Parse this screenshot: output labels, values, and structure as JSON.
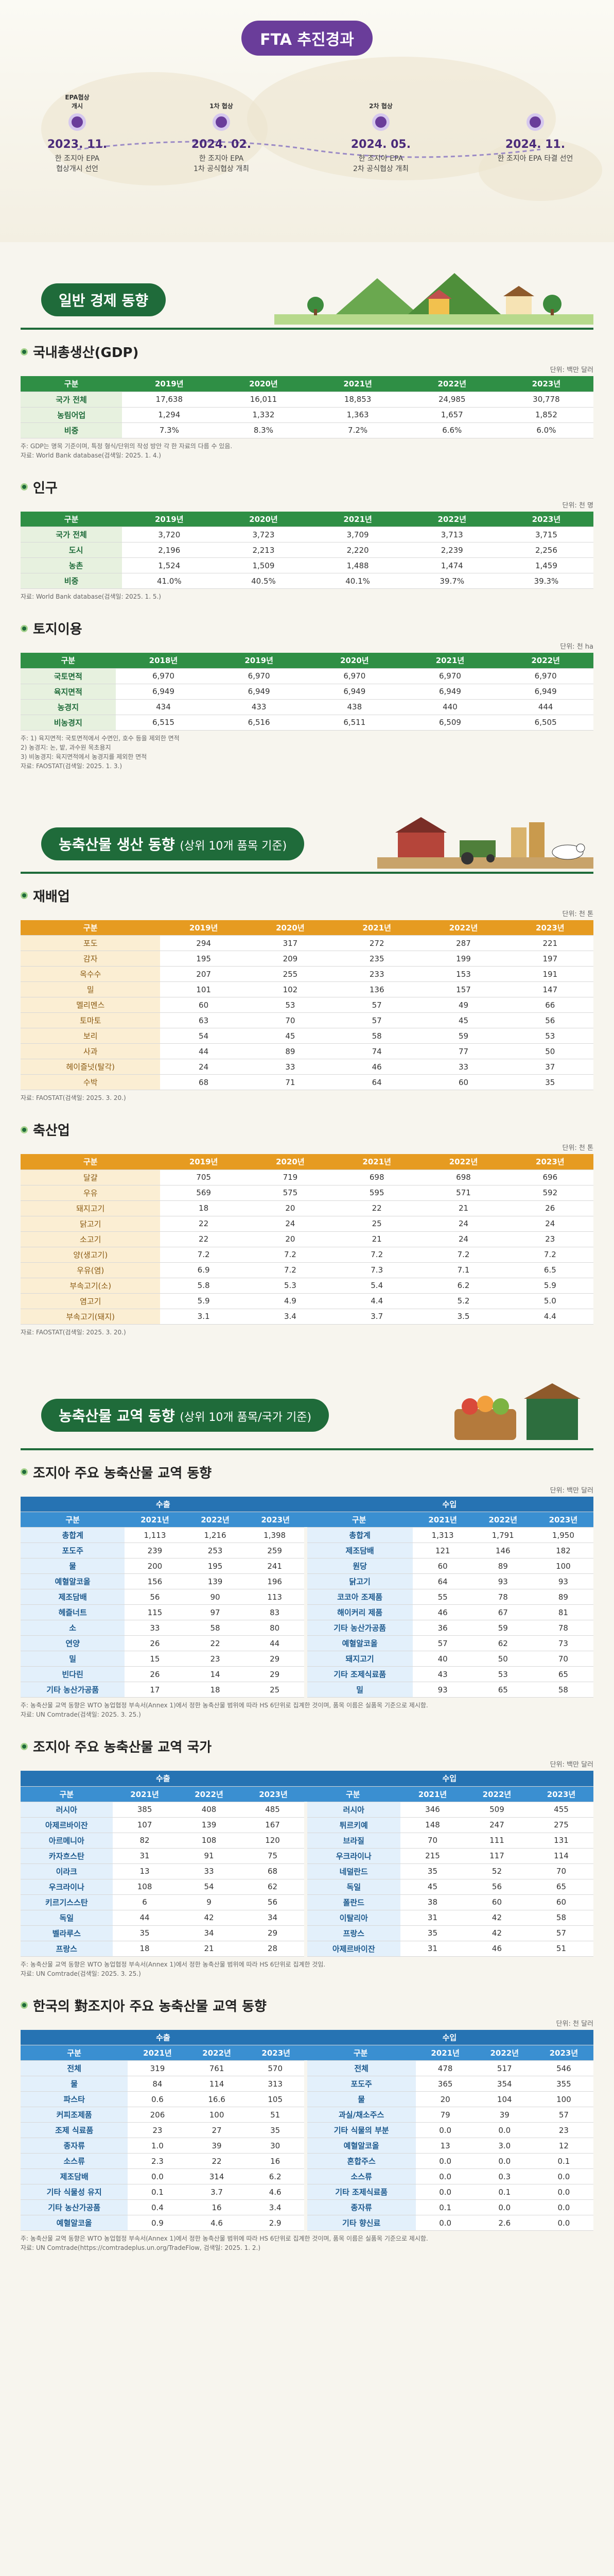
{
  "fta": {
    "title": "FTA 추진경과",
    "steps": [
      {
        "date": "2023. 11.",
        "desc": "한 조지아 EPA\n협상개시 선언",
        "flag": "EPA협상\n개시"
      },
      {
        "date": "2024. 02.",
        "desc": "한 조지아 EPA\n1차 공식협상 개최",
        "flag": "1차 협상"
      },
      {
        "date": "2024. 05.",
        "desc": "한 조지아 EPA\n2차 공식협상 개최",
        "flag": "2차 협상"
      },
      {
        "date": "2024. 11.",
        "desc": "한 조지아 EPA 타결 선언",
        "flag": ""
      }
    ]
  },
  "econ": {
    "title": "일반 경제 동향",
    "gdp": {
      "title": "국내총생산(GDP)",
      "unit": "단위: 백만 달러",
      "header": [
        "구분",
        "2019년",
        "2020년",
        "2021년",
        "2022년",
        "2023년"
      ],
      "rows": [
        [
          "국가 전체",
          "17,638",
          "16,011",
          "18,853",
          "24,985",
          "30,778"
        ],
        [
          "농림어업",
          "1,294",
          "1,332",
          "1,363",
          "1,657",
          "1,852"
        ],
        [
          "비중",
          "7.3%",
          "8.3%",
          "7.2%",
          "6.6%",
          "6.0%"
        ]
      ],
      "notes": "주: GDP는 명목 기준이며, 특정 형식/단위의 작성 방안 각 한 자료의 다름 수 있음.\n자료: World Bank database(검색일: 2025. 1. 4.)"
    },
    "pop": {
      "title": "인구",
      "unit": "단위: 천 명",
      "header": [
        "구분",
        "2019년",
        "2020년",
        "2021년",
        "2022년",
        "2023년"
      ],
      "rows": [
        [
          "국가 전체",
          "3,720",
          "3,723",
          "3,709",
          "3,713",
          "3,715"
        ],
        [
          "도시",
          "2,196",
          "2,213",
          "2,220",
          "2,239",
          "2,256"
        ],
        [
          "농촌",
          "1,524",
          "1,509",
          "1,488",
          "1,474",
          "1,459"
        ],
        [
          "비중",
          "41.0%",
          "40.5%",
          "40.1%",
          "39.7%",
          "39.3%"
        ]
      ],
      "notes": "자료: World Bank database(검색일: 2025. 1. 5.)"
    },
    "land": {
      "title": "토지이용",
      "unit": "단위: 천 ha",
      "header": [
        "구분",
        "2018년",
        "2019년",
        "2020년",
        "2021년",
        "2022년"
      ],
      "rows": [
        [
          "국토면적",
          "6,970",
          "6,970",
          "6,970",
          "6,970",
          "6,970"
        ],
        [
          "육지면적",
          "6,949",
          "6,949",
          "6,949",
          "6,949",
          "6,949"
        ],
        [
          "농경지",
          "434",
          "433",
          "438",
          "440",
          "444"
        ],
        [
          "비농경지",
          "6,515",
          "6,516",
          "6,511",
          "6,509",
          "6,505"
        ]
      ],
      "notes": "주: 1) 육지면적: 국토면적에서 수면인, 호수 등을 제외한 면적\n    2) 농경지: 논, 밭, 과수원 목초용지\n    3) 비농경지: 육지면적에서 농경지를 제외한 면적\n자료: FAOSTAT(검색일: 2025. 1. 3.)"
    }
  },
  "agri": {
    "title": "농축산물 생산 동향",
    "subtitle": "(상위 10개 품목 기준)",
    "crops": {
      "title": "재배업",
      "unit": "단위: 천 톤",
      "header": [
        "구분",
        "2019년",
        "2020년",
        "2021년",
        "2022년",
        "2023년"
      ],
      "rows": [
        [
          "포도",
          "294",
          "317",
          "272",
          "287",
          "221"
        ],
        [
          "감자",
          "195",
          "209",
          "235",
          "199",
          "197"
        ],
        [
          "옥수수",
          "207",
          "255",
          "233",
          "153",
          "191"
        ],
        [
          "밀",
          "101",
          "102",
          "136",
          "157",
          "147"
        ],
        [
          "멜리멘스",
          "60",
          "53",
          "57",
          "49",
          "66"
        ],
        [
          "토마토",
          "63",
          "70",
          "57",
          "45",
          "56"
        ],
        [
          "보리",
          "54",
          "45",
          "58",
          "59",
          "53"
        ],
        [
          "사과",
          "44",
          "89",
          "74",
          "77",
          "50"
        ],
        [
          "헤이즐넛(탈각)",
          "24",
          "33",
          "46",
          "33",
          "37"
        ],
        [
          "수박",
          "68",
          "71",
          "64",
          "60",
          "35"
        ]
      ],
      "notes": "자료: FAOSTAT(검색일: 2025. 3. 20.)"
    },
    "livestock": {
      "title": "축산업",
      "unit": "단위: 천 톤",
      "header": [
        "구분",
        "2019년",
        "2020년",
        "2021년",
        "2022년",
        "2023년"
      ],
      "rows": [
        [
          "달걀",
          "705",
          "719",
          "698",
          "698",
          "696"
        ],
        [
          "우유",
          "569",
          "575",
          "595",
          "571",
          "592"
        ],
        [
          "돼지고기",
          "18",
          "20",
          "22",
          "21",
          "26"
        ],
        [
          "닭고기",
          "22",
          "24",
          "25",
          "24",
          "24"
        ],
        [
          "소고기",
          "22",
          "20",
          "21",
          "24",
          "23"
        ],
        [
          "양(생고기)",
          "7.2",
          "7.2",
          "7.2",
          "7.2",
          "7.2"
        ],
        [
          "우유(염)",
          "6.9",
          "7.2",
          "7.3",
          "7.1",
          "6.5"
        ],
        [
          "부속고기(소)",
          "5.8",
          "5.3",
          "5.4",
          "6.2",
          "5.9"
        ],
        [
          "염고기",
          "5.9",
          "4.9",
          "4.4",
          "5.2",
          "5.0"
        ],
        [
          "부속고기(돼지)",
          "3.1",
          "3.4",
          "3.7",
          "3.5",
          "4.4"
        ]
      ],
      "notes": "자료: FAOSTAT(검색일: 2025. 3. 20.)"
    }
  },
  "trade": {
    "title": "농축산물 교역 동향",
    "subtitle": "(상위 10개 품목/국가 기준)",
    "items": {
      "title": "조지아 주요 농축산물 교역 동향",
      "unit": "단위: 백만 달러",
      "export_label": "수출",
      "import_label": "수입",
      "header": [
        "구분",
        "2021년",
        "2022년",
        "2023년",
        "구분",
        "2021년",
        "2022년",
        "2023년"
      ],
      "rows": [
        [
          "총합계",
          "1,113",
          "1,216",
          "1,398",
          "총합계",
          "1,313",
          "1,791",
          "1,950"
        ],
        [
          "포도주",
          "239",
          "253",
          "259",
          "제조담배",
          "121",
          "146",
          "182"
        ],
        [
          "물",
          "200",
          "195",
          "241",
          "원당",
          "60",
          "89",
          "100"
        ],
        [
          "예혈알코올",
          "156",
          "139",
          "196",
          "닭고기",
          "64",
          "93",
          "93"
        ],
        [
          "제조담배",
          "56",
          "90",
          "113",
          "코코아 조제품",
          "55",
          "78",
          "89"
        ],
        [
          "헤즐너트",
          "115",
          "97",
          "83",
          "해이커리 제품",
          "46",
          "67",
          "81"
        ],
        [
          "소",
          "33",
          "58",
          "80",
          "기타 농산가공품",
          "36",
          "59",
          "78"
        ],
        [
          "연양",
          "26",
          "22",
          "44",
          "예혈알코올",
          "57",
          "62",
          "73"
        ],
        [
          "밀",
          "15",
          "23",
          "29",
          "돼지고기",
          "40",
          "50",
          "70"
        ],
        [
          "빈다린",
          "26",
          "14",
          "29",
          "기타 조제식료품",
          "43",
          "53",
          "65"
        ],
        [
          "기타 농산가공품",
          "17",
          "18",
          "25",
          "밀",
          "93",
          "65",
          "58"
        ]
      ],
      "notes": "주: 농축산물 교역 동향은 WTO 농업협정 부속서(Annex 1)에서 정한 농축산물 범위에 따라 HS 6단위로 집계한 것이며, 품목 이름은 실품목 기준으로 제시함.\n자료: UN Comtrade(검색일: 2025. 3. 25.)"
    },
    "countries": {
      "title": "조지아 주요 농축산물 교역 국가",
      "unit": "단위: 백만 달러",
      "export_label": "수출",
      "import_label": "수입",
      "header": [
        "구분",
        "2021년",
        "2022년",
        "2023년",
        "구분",
        "2021년",
        "2022년",
        "2023년"
      ],
      "rows": [
        [
          "러시아",
          "385",
          "408",
          "485",
          "러시아",
          "346",
          "509",
          "455"
        ],
        [
          "아제르바이잔",
          "107",
          "139",
          "167",
          "튀르키예",
          "148",
          "247",
          "275"
        ],
        [
          "아르메니아",
          "82",
          "108",
          "120",
          "브라질",
          "70",
          "111",
          "131"
        ],
        [
          "카자흐스탄",
          "31",
          "91",
          "75",
          "우크라이나",
          "215",
          "117",
          "114"
        ],
        [
          "이라크",
          "13",
          "33",
          "68",
          "네덜란드",
          "35",
          "52",
          "70"
        ],
        [
          "우크라이나",
          "108",
          "54",
          "62",
          "독일",
          "45",
          "56",
          "65"
        ],
        [
          "키르기스스탄",
          "6",
          "9",
          "56",
          "폴란드",
          "38",
          "60",
          "60"
        ],
        [
          "독일",
          "44",
          "42",
          "34",
          "이탈리아",
          "31",
          "42",
          "58"
        ],
        [
          "벨라루스",
          "35",
          "34",
          "29",
          "프랑스",
          "35",
          "42",
          "57"
        ],
        [
          "프랑스",
          "18",
          "21",
          "28",
          "아제르바이잔",
          "31",
          "46",
          "51"
        ]
      ],
      "notes": "주: 농축산물 교역 동향은 WTO 농업협정 부속서(Annex 1)에서 정한 농축산물 범위에 따라 HS 6단위로 집계한 것임.\n자료: UN Comtrade(검색일: 2025. 3. 25.)"
    },
    "korea": {
      "title": "한국의 對조지아 주요 농축산물 교역 동향",
      "unit": "단위: 천 달러",
      "export_label": "수출",
      "import_label": "수입",
      "header": [
        "구분",
        "2021년",
        "2022년",
        "2023년",
        "구분",
        "2021년",
        "2022년",
        "2023년"
      ],
      "rows": [
        [
          "전체",
          "319",
          "761",
          "570",
          "전체",
          "478",
          "517",
          "546"
        ],
        [
          "물",
          "84",
          "114",
          "313",
          "포도주",
          "365",
          "354",
          "355"
        ],
        [
          "파스타",
          "0.6",
          "16.6",
          "105",
          "물",
          "20",
          "104",
          "100"
        ],
        [
          "커피조제품",
          "206",
          "100",
          "51",
          "과실/채소주스",
          "79",
          "39",
          "57"
        ],
        [
          "조제 식료품",
          "23",
          "27",
          "35",
          "기타 식물의 부분",
          "0.0",
          "0.0",
          "23"
        ],
        [
          "종자류",
          "1.0",
          "39",
          "30",
          "예혈알코올",
          "13",
          "3.0",
          "12"
        ],
        [
          "소스류",
          "2.3",
          "22",
          "16",
          "혼합주스",
          "0.0",
          "0.0",
          "0.1"
        ],
        [
          "제조담배",
          "0.0",
          "314",
          "6.2",
          "소스류",
          "0.0",
          "0.3",
          "0.0"
        ],
        [
          "기타 식물성 유지",
          "0.1",
          "3.7",
          "4.6",
          "기타 조제식료품",
          "0.0",
          "0.1",
          "0.0"
        ],
        [
          "기타 농산가공품",
          "0.4",
          "16",
          "3.4",
          "종자류",
          "0.1",
          "0.0",
          "0.0"
        ],
        [
          "예혈알코올",
          "0.9",
          "4.6",
          "2.9",
          "기타 향신료",
          "0.0",
          "2.6",
          "0.0"
        ]
      ],
      "notes": "주: 농축산물 교역 동향은 WTO 농업협정 부속서(Annex 1)에서 정한 농축산물 범위에 따라 HS 6단위로 집계한 것이며, 품목 이름은 실품목 기준으로 제시함.\n자료: UN Comtrade(https://comtradeplus.un.org/TradeFlow, 검색일: 2025. 1. 2.)"
    }
  },
  "colors": {
    "purple": "#6a3d9a",
    "green": "#1f6b3a",
    "orange": "#e69b21",
    "blue": "#3a8fd1"
  }
}
